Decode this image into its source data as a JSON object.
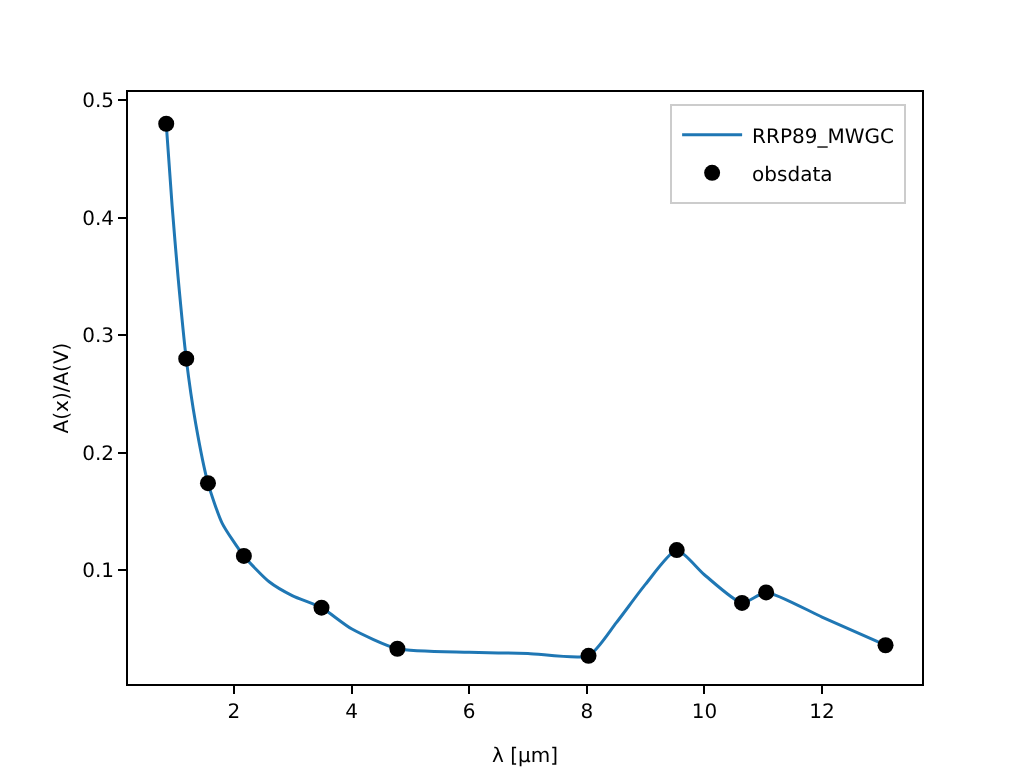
{
  "chart_data": {
    "type": "line",
    "xlabel": "λ [μm]",
    "ylabel": "A(x)/A(V)",
    "xlim": [
      0.2,
      13.7
    ],
    "ylim": [
      0.003,
      0.507
    ],
    "xticks": [
      2,
      4,
      6,
      8,
      10,
      12
    ],
    "yticks": [
      0.1,
      0.2,
      0.3,
      0.4,
      0.5
    ],
    "legend": "top right",
    "grid": false,
    "series": [
      {
        "name": "RRP89_MWGC",
        "color": "#1f77b4",
        "marker": "none",
        "line_style": "solid",
        "x": [
          0.85,
          0.95,
          1.05,
          1.19,
          1.35,
          1.56,
          1.8,
          2.17,
          2.6,
          3.0,
          3.49,
          4.0,
          4.78,
          6,
          7,
          8.03,
          8.5,
          9.0,
          9.53,
          10.0,
          10.64,
          11.05,
          12,
          13.08
        ],
        "values": [
          0.48,
          0.41,
          0.35,
          0.28,
          0.225,
          0.174,
          0.14,
          0.112,
          0.09,
          0.078,
          0.068,
          0.05,
          0.033,
          0.03,
          0.029,
          0.027,
          0.055,
          0.088,
          0.117,
          0.096,
          0.072,
          0.081,
          0.06,
          0.036
        ]
      },
      {
        "name": "obsdata",
        "type": "scatter",
        "color": "#000000",
        "marker": "circle",
        "x": [
          0.85,
          1.19,
          1.56,
          2.17,
          3.49,
          4.78,
          8.03,
          9.53,
          10.64,
          11.05,
          13.08
        ],
        "values": [
          0.48,
          0.28,
          0.174,
          0.112,
          0.068,
          0.033,
          0.027,
          0.117,
          0.072,
          0.081,
          0.036
        ]
      }
    ]
  }
}
